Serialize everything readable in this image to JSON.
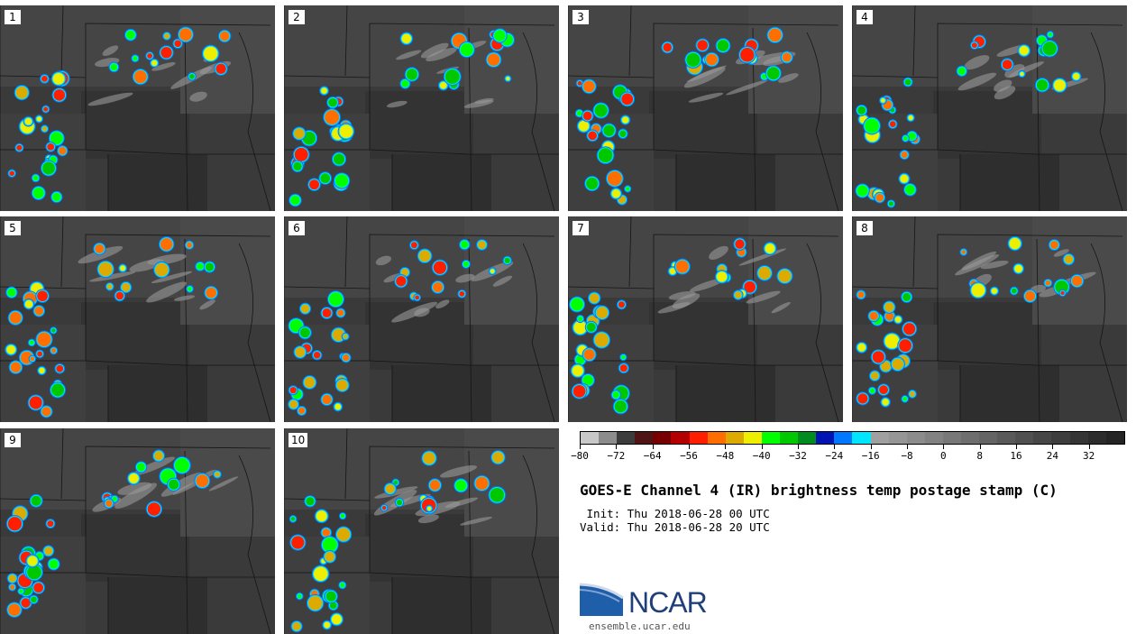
{
  "panels": [
    {
      "label": "1"
    },
    {
      "label": "2"
    },
    {
      "label": "3"
    },
    {
      "label": "4"
    },
    {
      "label": "5"
    },
    {
      "label": "6"
    },
    {
      "label": "7"
    },
    {
      "label": "8"
    },
    {
      "label": "9"
    },
    {
      "label": "10"
    }
  ],
  "title": "GOES-E Channel 4 (IR) brightness temp postage stamp (C)",
  "init": " Init: Thu 2018-06-28 00 UTC",
  "valid": "Valid: Thu 2018-06-28 20 UTC",
  "colorbar": {
    "min": -80,
    "max": 40,
    "step": 4,
    "tick_labels": [
      "−80",
      "−72",
      "−64",
      "−56",
      "−48",
      "−40",
      "−32",
      "−24",
      "−16",
      "−8",
      "0",
      "8",
      "16",
      "24",
      "32"
    ],
    "colors": [
      "#c8c8c8",
      "#8c8c8c",
      "#3c3c3c",
      "#501414",
      "#780000",
      "#b40000",
      "#ff1e00",
      "#ff6e00",
      "#dcaa00",
      "#eeee00",
      "#00ff00",
      "#00c800",
      "#008c1e",
      "#0014b4",
      "#0078ff",
      "#00e6ff",
      "#a0a0a0",
      "#969696",
      "#8c8c8c",
      "#828282",
      "#787878",
      "#6e6e6e",
      "#646464",
      "#5a5a5a",
      "#505050",
      "#474747",
      "#3e3e3e",
      "#353535",
      "#2c2c2c",
      "#242424"
    ]
  },
  "logo": {
    "text": "NCAR",
    "url": "ensemble.ucar.edu"
  }
}
